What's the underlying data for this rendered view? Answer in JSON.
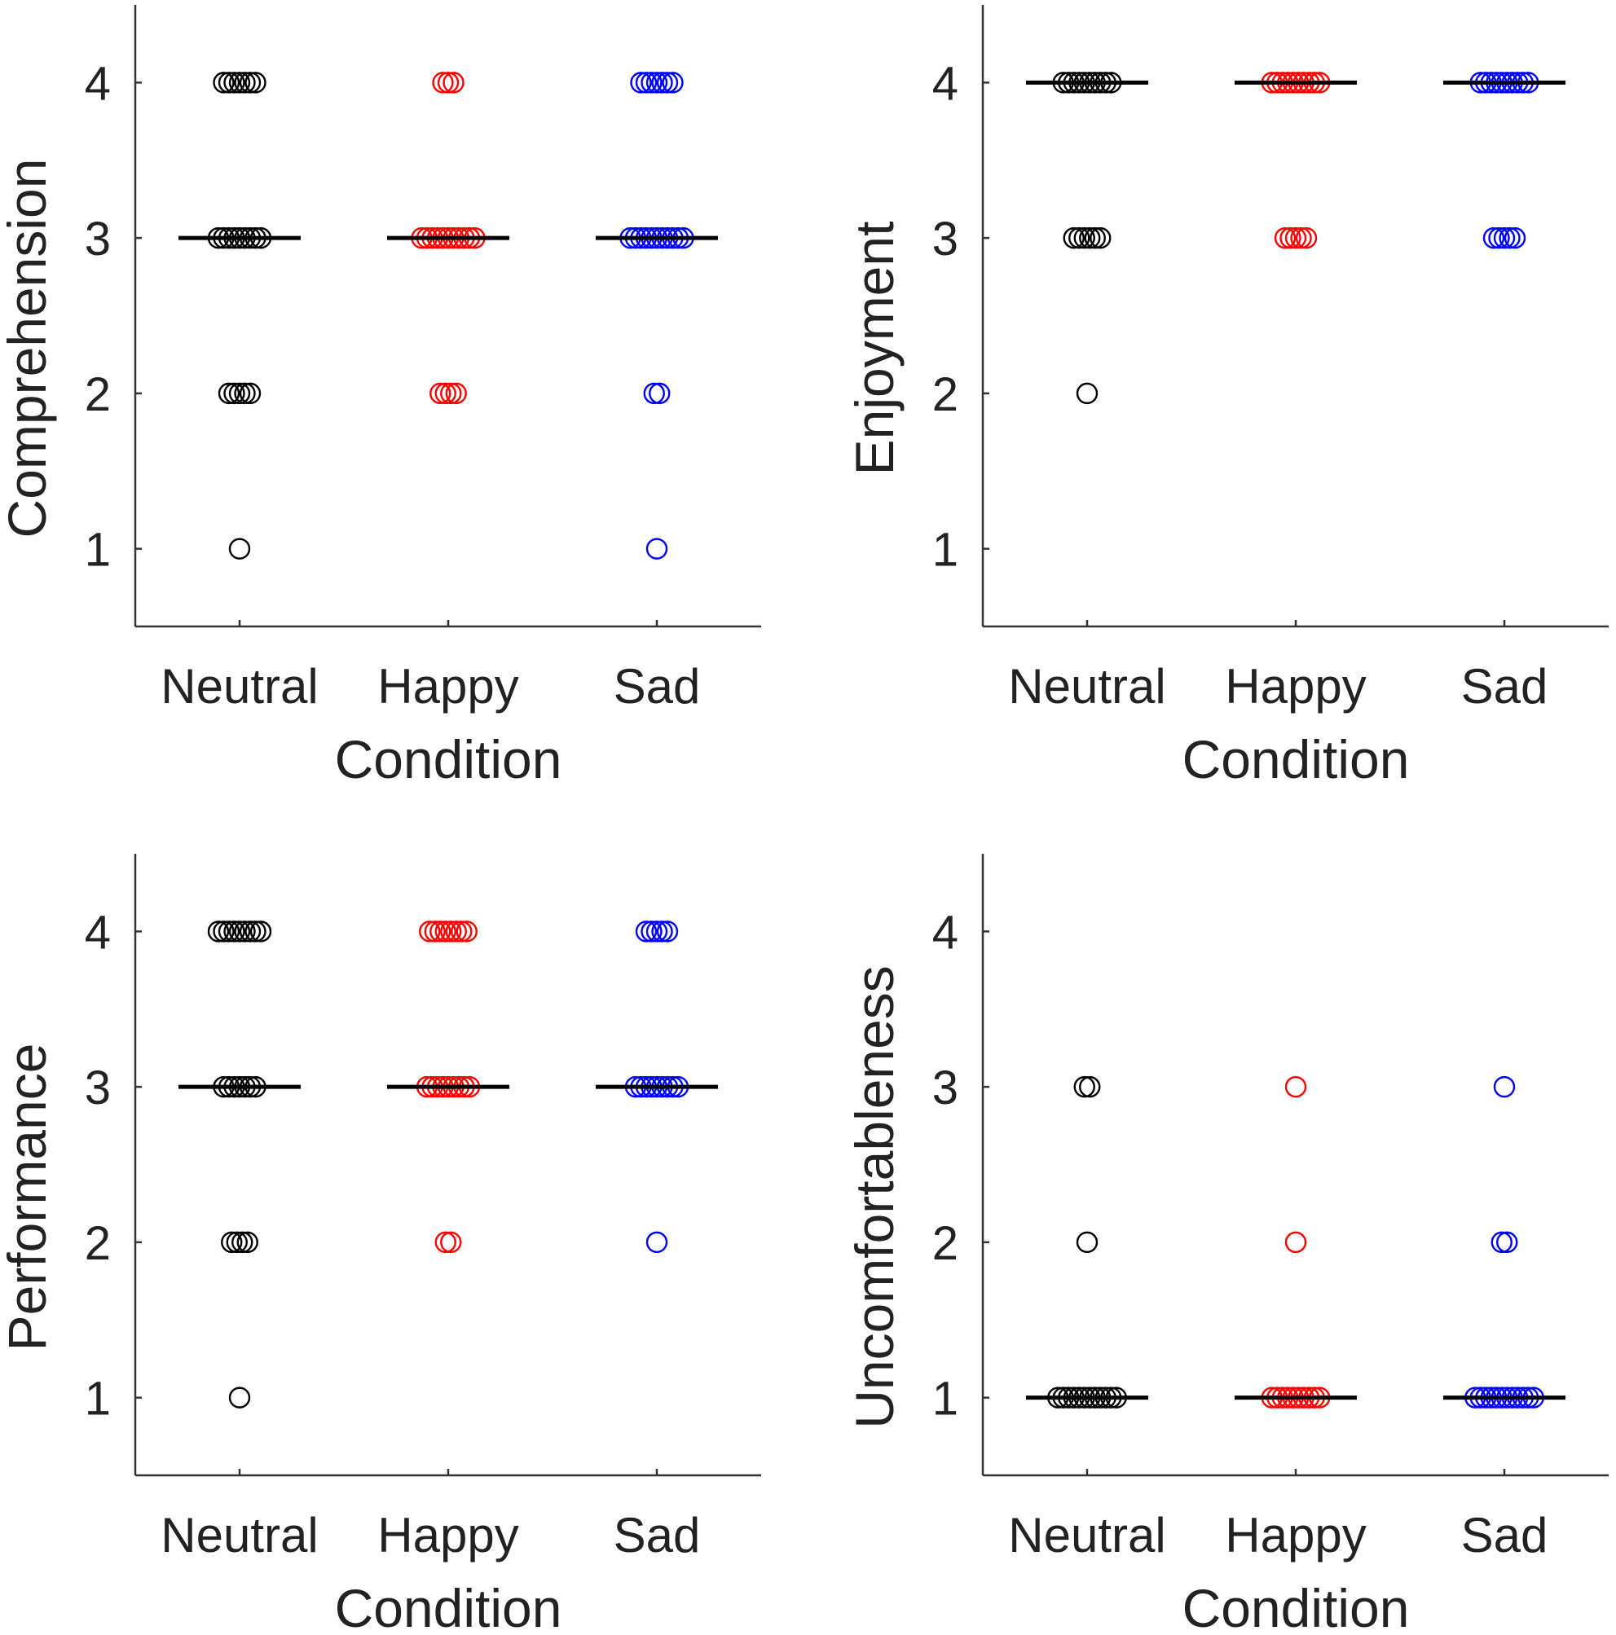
{
  "chart_data": [
    {
      "type": "scatter",
      "ylabel": "Comprehension",
      "xlabel": "Condition",
      "categories": [
        "Neutral",
        "Happy",
        "Sad"
      ],
      "yticks": [
        1,
        2,
        3,
        4
      ],
      "ylim": [
        0.5,
        4.5
      ],
      "score_levels": [
        1,
        2,
        3,
        4
      ],
      "series": [
        {
          "name": "Neutral",
          "color": "#000000",
          "counts_by_score": [
            1,
            5,
            9,
            7
          ],
          "median": 3
        },
        {
          "name": "Happy",
          "color": "#ff0000",
          "counts_by_score": [
            0,
            4,
            11,
            3
          ],
          "median": 3
        },
        {
          "name": "Sad",
          "color": "#0000ff",
          "counts_by_score": [
            1,
            2,
            11,
            7
          ],
          "median": 3
        }
      ]
    },
    {
      "type": "scatter",
      "ylabel": "Enjoyment",
      "xlabel": "Condition",
      "categories": [
        "Neutral",
        "Happy",
        "Sad"
      ],
      "yticks": [
        1,
        2,
        3,
        4
      ],
      "ylim": [
        0.5,
        4.5
      ],
      "score_levels": [
        1,
        2,
        3,
        4
      ],
      "series": [
        {
          "name": "Neutral",
          "color": "#000000",
          "counts_by_score": [
            0,
            1,
            6,
            10
          ],
          "median": 4
        },
        {
          "name": "Happy",
          "color": "#ff0000",
          "counts_by_score": [
            0,
            0,
            5,
            10
          ],
          "median": 4
        },
        {
          "name": "Sad",
          "color": "#0000ff",
          "counts_by_score": [
            0,
            0,
            5,
            10
          ],
          "median": 4
        }
      ]
    },
    {
      "type": "scatter",
      "ylabel": "Performance",
      "xlabel": "Condition",
      "categories": [
        "Neutral",
        "Happy",
        "Sad"
      ],
      "yticks": [
        1,
        2,
        3,
        4
      ],
      "ylim": [
        0.5,
        4.5
      ],
      "score_levels": [
        1,
        2,
        3,
        4
      ],
      "series": [
        {
          "name": "Neutral",
          "color": "#000000",
          "counts_by_score": [
            1,
            4,
            7,
            9
          ],
          "median": 3
        },
        {
          "name": "Happy",
          "color": "#ff0000",
          "counts_by_score": [
            0,
            2,
            9,
            8
          ],
          "median": 3
        },
        {
          "name": "Sad",
          "color": "#0000ff",
          "counts_by_score": [
            0,
            1,
            9,
            5
          ],
          "median": 3
        }
      ]
    },
    {
      "type": "scatter",
      "ylabel": "Uncomfortableness",
      "xlabel": "Condition",
      "categories": [
        "Neutral",
        "Happy",
        "Sad"
      ],
      "yticks": [
        1,
        2,
        3,
        4
      ],
      "ylim": [
        0.5,
        4.5
      ],
      "score_levels": [
        1,
        2,
        3,
        4
      ],
      "series": [
        {
          "name": "Neutral",
          "color": "#000000",
          "counts_by_score": [
            12,
            1,
            2,
            0
          ],
          "median": 1
        },
        {
          "name": "Happy",
          "color": "#ff0000",
          "counts_by_score": [
            10,
            1,
            1,
            0
          ],
          "median": 1
        },
        {
          "name": "Sad",
          "color": "#0000ff",
          "counts_by_score": [
            12,
            2,
            1,
            0
          ],
          "median": 1
        }
      ]
    }
  ]
}
